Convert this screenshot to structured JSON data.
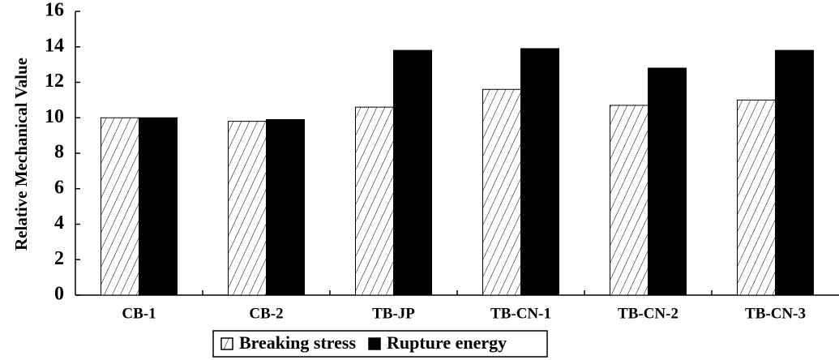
{
  "chart_data": {
    "type": "bar",
    "y_label": "Relative Mechanical Value",
    "categories": [
      "CB-1",
      "CB-2",
      "TB-JP",
      "TB-CN-1",
      "TB-CN-2",
      "TB-CN-3"
    ],
    "series": [
      {
        "name": "Breaking stress",
        "color": "#000000",
        "hatch": true,
        "values": [
          10.0,
          9.8,
          10.6,
          11.6,
          10.7,
          11.0
        ]
      },
      {
        "name": "Rupture energy",
        "color": "#000000",
        "hatch": false,
        "values": [
          10.0,
          9.9,
          13.8,
          13.9,
          12.8,
          13.8
        ]
      }
    ],
    "ylim": [
      0,
      16
    ],
    "yticks": [
      0,
      2,
      4,
      6,
      8,
      10,
      12,
      14,
      16
    ],
    "grid": false,
    "legend": "bottom"
  }
}
